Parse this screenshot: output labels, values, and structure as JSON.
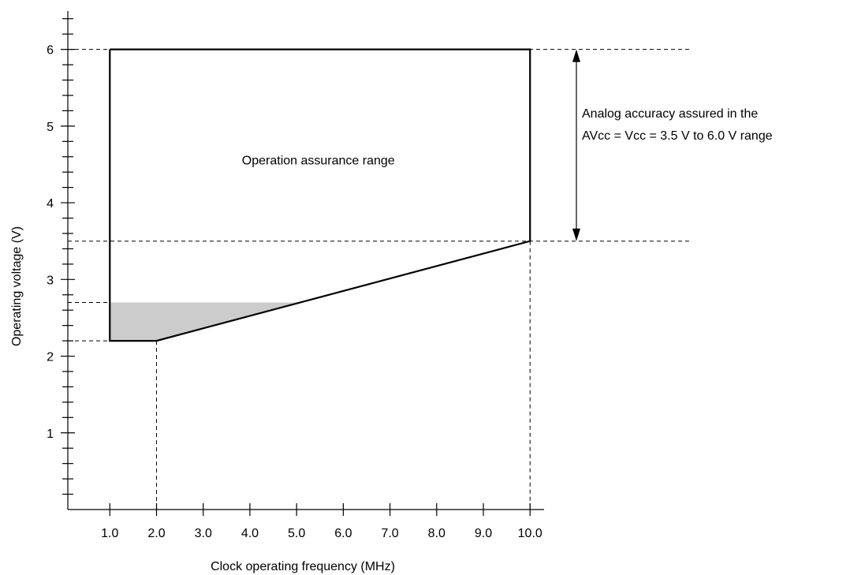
{
  "chart_data": {
    "type": "area",
    "xlabel": "Clock operating frequency (MHz)",
    "ylabel": "Operating voltage (V)",
    "x_ticks": [
      "1.0",
      "2.0",
      "3.0",
      "4.0",
      "5.0",
      "6.0",
      "7.0",
      "8.0",
      "9.0",
      "10.0"
    ],
    "y_ticks": [
      "1",
      "2",
      "3",
      "4",
      "5",
      "6"
    ],
    "xlim": [
      0.1,
      10.3
    ],
    "ylim": [
      0.0,
      6.5
    ],
    "y_minor_step": 0.2,
    "grid": false,
    "region": {
      "label": "Operation assurance range",
      "points": [
        [
          1.0,
          6.0
        ],
        [
          10.0,
          6.0
        ],
        [
          10.0,
          3.5
        ],
        [
          2.0,
          2.2
        ],
        [
          1.0,
          2.2
        ]
      ]
    },
    "shaded_region": {
      "points": [
        [
          1.0,
          2.7
        ],
        [
          5.0,
          2.7
        ],
        [
          2.0,
          2.2
        ],
        [
          1.0,
          2.2
        ]
      ],
      "color": "#cccccc"
    },
    "reference_lines": {
      "horizontal": [
        6.0,
        3.5,
        2.7,
        2.2
      ],
      "vertical": [
        2.0,
        10.0
      ]
    },
    "annotation": {
      "lines": [
        "Analog accuracy assured in the",
        "AVcc = Vcc = 3.5 V to 6.0 V range"
      ],
      "range": [
        3.5,
        6.0
      ]
    }
  }
}
